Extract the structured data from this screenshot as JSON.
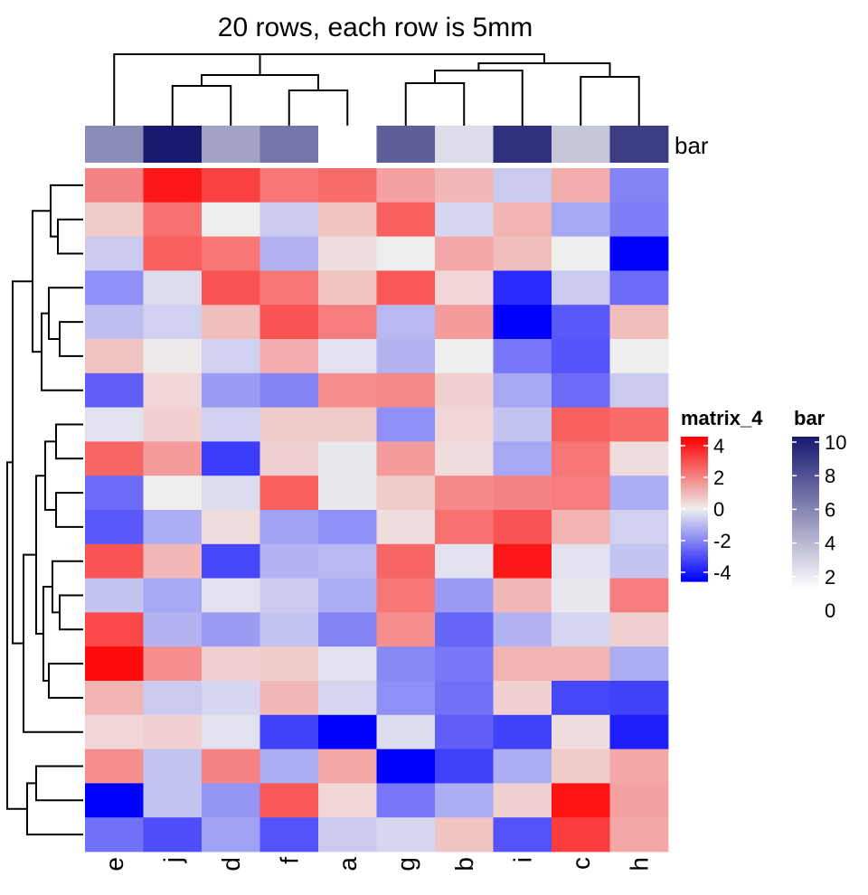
{
  "chart_data": {
    "type": "heatmap",
    "title": "20 rows, each row is 5mm",
    "columns": [
      "e",
      "j",
      "d",
      "f",
      "a",
      "g",
      "b",
      "i",
      "c",
      "h"
    ],
    "row_count": 20,
    "values": [
      [
        1.8,
        3.6,
        2.9,
        2.0,
        2.2,
        1.3,
        0.9,
        -0.6,
        1.1,
        -1.8
      ],
      [
        0.6,
        2.1,
        0.0,
        -0.6,
        0.7,
        2.4,
        -0.4,
        1.0,
        -1.2,
        -1.9
      ],
      [
        -0.6,
        2.4,
        2.0,
        -1.0,
        0.3,
        0.0,
        1.2,
        0.8,
        0.0,
        -4.3
      ],
      [
        -1.6,
        -0.3,
        2.6,
        2.0,
        0.7,
        2.5,
        0.4,
        -3.3,
        -0.6,
        -2.2
      ],
      [
        -0.8,
        -0.5,
        0.8,
        2.6,
        1.9,
        -0.9,
        1.4,
        -4.0,
        -2.5,
        0.8
      ],
      [
        0.7,
        0.1,
        -0.5,
        1.1,
        -0.2,
        -1.0,
        0.0,
        -2.0,
        -2.6,
        0.0
      ],
      [
        -2.4,
        0.4,
        -1.4,
        -1.8,
        1.6,
        1.7,
        0.5,
        -1.2,
        -2.2,
        -0.6
      ],
      [
        -0.2,
        0.5,
        -0.5,
        0.6,
        0.6,
        -1.6,
        0.4,
        -0.7,
        2.4,
        2.2
      ],
      [
        2.3,
        1.4,
        -3.0,
        0.5,
        -0.1,
        1.4,
        0.3,
        -1.2,
        2.0,
        0.3
      ],
      [
        -2.2,
        0.0,
        -0.3,
        2.4,
        -0.1,
        0.6,
        1.7,
        1.8,
        1.9,
        -1.1
      ],
      [
        -2.5,
        -1.1,
        0.3,
        -1.3,
        -1.6,
        0.3,
        2.1,
        2.6,
        1.0,
        -0.5
      ],
      [
        2.6,
        0.9,
        -2.8,
        -1.0,
        -0.9,
        2.3,
        -0.2,
        3.6,
        -0.2,
        -0.7
      ],
      [
        -0.7,
        -1.2,
        -0.2,
        -0.6,
        -1.1,
        2.0,
        -1.4,
        0.9,
        -0.1,
        1.9
      ],
      [
        2.8,
        -1.0,
        -1.4,
        -0.7,
        -1.8,
        1.6,
        -2.3,
        -1.0,
        -0.4,
        0.5
      ],
      [
        3.8,
        1.6,
        0.5,
        0.6,
        -0.2,
        -1.7,
        -2.0,
        1.0,
        1.0,
        -1.1
      ],
      [
        1.0,
        -0.6,
        -0.4,
        0.9,
        -0.4,
        -1.6,
        -2.1,
        0.5,
        -2.8,
        -2.9
      ],
      [
        0.4,
        0.5,
        -0.2,
        -2.9,
        -4.4,
        -0.3,
        -2.4,
        -2.9,
        0.3,
        -3.5
      ],
      [
        1.6,
        -0.7,
        1.8,
        -1.1,
        1.2,
        -4.4,
        -2.9,
        -1.1,
        0.6,
        1.2
      ],
      [
        -4.5,
        -0.7,
        -1.5,
        2.5,
        0.4,
        -2.0,
        -1.1,
        0.5,
        3.7,
        1.3
      ],
      [
        -2.1,
        -2.7,
        -1.3,
        -2.6,
        -0.6,
        -0.4,
        0.7,
        -2.6,
        3.0,
        1.2
      ]
    ],
    "bar_annotation": {
      "name": "bar",
      "values": [
        5,
        10,
        4,
        6,
        0,
        7,
        1.5,
        9,
        2.5,
        8.5
      ]
    },
    "legends": [
      {
        "title": "matrix_4",
        "tick_labels": [
          "4",
          "2",
          "0",
          "-2",
          "-4"
        ],
        "range": [
          -4,
          4
        ],
        "colors": {
          "low": "#0000ff",
          "mid": "#eeeeee",
          "high": "#ff0000"
        }
      },
      {
        "title": "bar",
        "tick_labels": [
          "10",
          "8",
          "6",
          "4",
          "2",
          "0"
        ],
        "range": [
          0,
          10
        ],
        "colors": {
          "low": "#ffffff",
          "high": "#191970"
        }
      }
    ],
    "row_dendrogram": true,
    "column_dendrogram": true
  }
}
